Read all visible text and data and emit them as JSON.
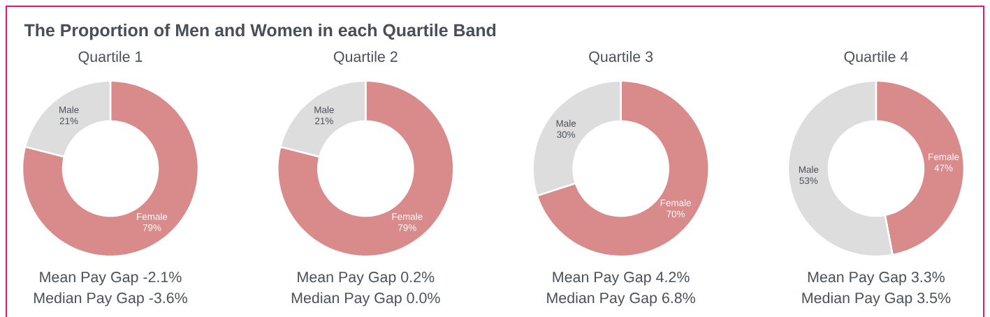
{
  "chart_data": [
    {
      "type": "other",
      "title": "The Proportion of Men and Women in each Quartile Band"
    },
    {
      "type": "donut",
      "title": "Quartile 1",
      "categories": [
        "Female",
        "Male"
      ],
      "values": [
        79,
        21
      ],
      "colors": [
        "#d98a8a",
        "#dddddd"
      ],
      "value_labels": [
        "79%",
        "21%"
      ],
      "annotations": [
        "Mean Pay Gap -2.1%",
        "Median Pay Gap -3.6%"
      ]
    },
    {
      "type": "donut",
      "title": "Quartile 2",
      "categories": [
        "Female",
        "Male"
      ],
      "values": [
        79,
        21
      ],
      "colors": [
        "#d98a8a",
        "#dddddd"
      ],
      "value_labels": [
        "79%",
        "21%"
      ],
      "annotations": [
        "Mean Pay Gap 0.2%",
        "Median Pay Gap 0.0%"
      ]
    },
    {
      "type": "donut",
      "title": "Quartile 3",
      "categories": [
        "Female",
        "Male"
      ],
      "values": [
        70,
        30
      ],
      "colors": [
        "#d98a8a",
        "#dddddd"
      ],
      "value_labels": [
        "70%",
        "30%"
      ],
      "annotations": [
        "Mean Pay Gap 4.2%",
        "Median Pay Gap 6.8%"
      ]
    },
    {
      "type": "donut",
      "title": "Quartile 4",
      "categories": [
        "Female",
        "Male"
      ],
      "values": [
        47,
        53
      ],
      "colors": [
        "#d98a8a",
        "#dddddd"
      ],
      "value_labels": [
        "47%",
        "53%"
      ],
      "annotations": [
        "Mean Pay Gap 3.3%",
        "Median Pay Gap 3.5%"
      ]
    }
  ]
}
